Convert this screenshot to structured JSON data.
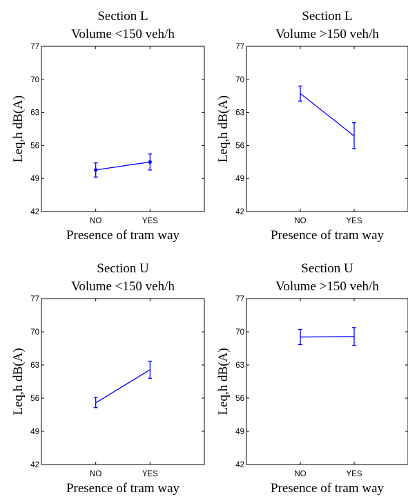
{
  "colors": {
    "series": "#0000ff",
    "axes": "#000000",
    "background": "#ffffff"
  },
  "chart_data": [
    {
      "type": "line",
      "title": "Section L",
      "subtitle": "Volume <150 veh/h",
      "xlabel": "Presence of tram way",
      "ylabel": "Leq,h  dB(A)",
      "categories": [
        "NO",
        "YES"
      ],
      "ylim": [
        42,
        77
      ],
      "yticks": [
        "42",
        "49",
        "56",
        "63",
        "70",
        "77"
      ],
      "markers": true,
      "series": [
        {
          "values": [
            50.8,
            52.5
          ],
          "err_low": [
            49.3,
            50.8
          ],
          "err_high": [
            52.3,
            54.2
          ]
        }
      ]
    },
    {
      "type": "line",
      "title": "Section L",
      "subtitle": "Volume >150 veh/h",
      "xlabel": "Presence of tram way",
      "ylabel": "Leq,h  dB(A)",
      "categories": [
        "NO",
        "YES"
      ],
      "ylim": [
        42,
        77
      ],
      "yticks": [
        "42",
        "49",
        "56",
        "63",
        "70",
        "77"
      ],
      "markers": false,
      "series": [
        {
          "values": [
            67.0,
            58.0
          ],
          "err_low": [
            65.4,
            55.3
          ],
          "err_high": [
            68.6,
            60.8
          ]
        }
      ]
    },
    {
      "type": "line",
      "title": "Section U",
      "subtitle": "Volume <150 veh/h",
      "xlabel": "Presence of tram way",
      "ylabel": "Leq,h  dB(A)",
      "categories": [
        "NO",
        "YES"
      ],
      "ylim": [
        42,
        77
      ],
      "yticks": [
        "42",
        "49",
        "56",
        "63",
        "70",
        "77"
      ],
      "markers": false,
      "series": [
        {
          "values": [
            55.0,
            62.0
          ],
          "err_low": [
            54.0,
            60.2
          ],
          "err_high": [
            56.2,
            63.8
          ]
        }
      ]
    },
    {
      "type": "line",
      "title": "Section U",
      "subtitle": "Volume >150 veh/h",
      "xlabel": "Presence of tram way",
      "ylabel": "Leq,h  dB(A)",
      "categories": [
        "NO",
        "YES"
      ],
      "ylim": [
        42,
        77
      ],
      "yticks": [
        "42",
        "49",
        "56",
        "63",
        "70",
        "77"
      ],
      "markers": false,
      "series": [
        {
          "values": [
            68.9,
            69.0
          ],
          "err_low": [
            67.3,
            67.1
          ],
          "err_high": [
            70.5,
            70.9
          ]
        }
      ]
    }
  ]
}
